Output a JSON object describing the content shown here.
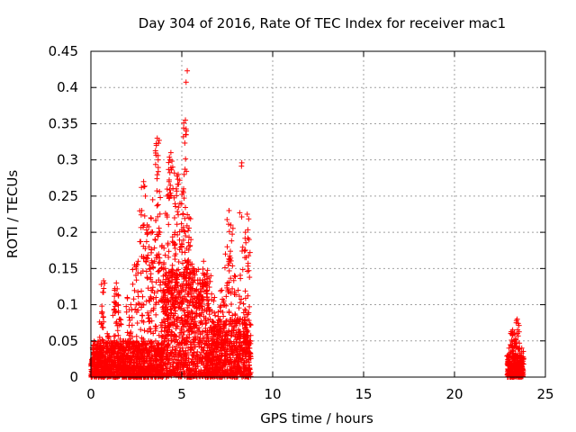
{
  "chart_data": {
    "type": "scatter",
    "title": "Day 304 of 2016, Rate Of TEC Index for receiver mac1",
    "xlabel": "GPS time / hours",
    "ylabel": "ROTI / TECUs",
    "xlim": [
      0,
      25
    ],
    "ylim": [
      0,
      0.45
    ],
    "x_ticks": [
      0,
      5,
      10,
      15,
      20,
      25
    ],
    "x_tick_labels": [
      "0",
      "5",
      "10",
      "15",
      "20",
      "25"
    ],
    "y_ticks": [
      0,
      0.05,
      0.1,
      0.15,
      0.2,
      0.25,
      0.3,
      0.35,
      0.4,
      0.45
    ],
    "y_tick_labels": [
      "0",
      "0.05",
      "0.1",
      "0.15",
      "0.2",
      "0.25",
      "0.3",
      "0.35",
      "0.4",
      "0.45"
    ],
    "grid": true,
    "marker": "+",
    "series": [
      {
        "name": "ROTI",
        "color": "#ff0000",
        "points": [
          [
            0.1,
            0.02
          ],
          [
            0.3,
            0.04
          ],
          [
            0.5,
            0.05
          ],
          [
            0.6,
            0.09
          ],
          [
            0.7,
            0.133
          ],
          [
            0.9,
            0.06
          ],
          [
            1.1,
            0.03
          ],
          [
            1.3,
            0.12
          ],
          [
            1.4,
            0.13
          ],
          [
            1.5,
            0.1
          ],
          [
            1.6,
            0.08
          ],
          [
            1.8,
            0.05
          ],
          [
            2.0,
            0.11
          ],
          [
            2.2,
            0.1
          ],
          [
            2.4,
            0.155
          ],
          [
            2.6,
            0.16
          ],
          [
            2.8,
            0.23
          ],
          [
            2.9,
            0.27
          ],
          [
            3.0,
            0.25
          ],
          [
            3.1,
            0.21
          ],
          [
            3.2,
            0.18
          ],
          [
            3.3,
            0.22
          ],
          [
            3.4,
            0.245
          ],
          [
            3.5,
            0.16
          ],
          [
            3.6,
            0.32
          ],
          [
            3.65,
            0.33
          ],
          [
            3.7,
            0.3
          ],
          [
            3.8,
            0.2
          ],
          [
            3.9,
            0.18
          ],
          [
            4.0,
            0.12
          ],
          [
            4.1,
            0.15
          ],
          [
            4.2,
            0.25
          ],
          [
            4.3,
            0.27
          ],
          [
            4.35,
            0.3
          ],
          [
            4.4,
            0.31
          ],
          [
            4.5,
            0.29
          ],
          [
            4.6,
            0.22
          ],
          [
            4.7,
            0.26
          ],
          [
            4.8,
            0.28
          ],
          [
            4.9,
            0.24
          ],
          [
            5.0,
            0.18
          ],
          [
            5.1,
            0.26
          ],
          [
            5.2,
            0.355
          ],
          [
            5.25,
            0.34
          ],
          [
            5.3,
            0.423
          ],
          [
            5.4,
            0.22
          ],
          [
            5.5,
            0.19
          ],
          [
            5.6,
            0.15
          ],
          [
            5.8,
            0.12
          ],
          [
            6.0,
            0.13
          ],
          [
            6.2,
            0.16
          ],
          [
            6.4,
            0.12
          ],
          [
            6.6,
            0.14
          ],
          [
            6.8,
            0.11
          ],
          [
            7.0,
            0.09
          ],
          [
            7.2,
            0.12
          ],
          [
            7.4,
            0.17
          ],
          [
            7.5,
            0.18
          ],
          [
            7.6,
            0.23
          ],
          [
            7.7,
            0.21
          ],
          [
            7.9,
            0.14
          ],
          [
            8.1,
            0.12
          ],
          [
            8.3,
            0.296
          ],
          [
            8.5,
            0.2
          ],
          [
            8.6,
            0.225
          ],
          [
            8.7,
            0.19
          ],
          [
            23.0,
            0.04
          ],
          [
            23.1,
            0.06
          ],
          [
            23.2,
            0.065
          ],
          [
            23.3,
            0.05
          ],
          [
            23.4,
            0.075
          ],
          [
            23.45,
            0.08
          ],
          [
            23.5,
            0.04
          ],
          [
            23.6,
            0.03
          ],
          [
            23.7,
            0.04
          ]
        ]
      }
    ],
    "dense_bands": [
      {
        "x_start": 0.0,
        "x_end": 4.0,
        "y_min": 0.0,
        "y_max": 0.05
      },
      {
        "x_start": 4.0,
        "x_end": 6.5,
        "y_min": 0.0,
        "y_max": 0.15
      },
      {
        "x_start": 6.5,
        "x_end": 8.8,
        "y_min": 0.0,
        "y_max": 0.08
      },
      {
        "x_start": 22.9,
        "x_end": 23.8,
        "y_min": 0.0,
        "y_max": 0.03
      }
    ]
  }
}
